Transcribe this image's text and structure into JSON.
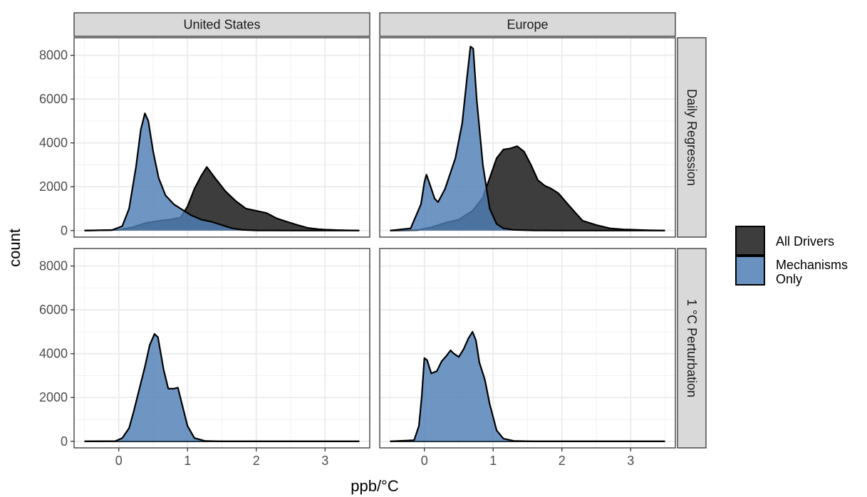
{
  "chart_data": {
    "type": "area",
    "xlabel": "ppb/°C",
    "ylabel": "count",
    "xlim": [
      -0.65,
      3.65
    ],
    "ylim": [
      -300,
      8800
    ],
    "x_ticks": [
      0,
      1,
      2,
      3
    ],
    "x_tick_labels": [
      "0",
      "1",
      "2",
      "3"
    ],
    "y_ticks": [
      0,
      2000,
      4000,
      6000,
      8000
    ],
    "y_tick_labels": [
      "0",
      "2000",
      "4000",
      "6000",
      "8000"
    ],
    "columns": [
      "United States",
      "Europe"
    ],
    "rows": [
      "Daily Regression",
      "1 °C Perturbation"
    ],
    "grid": true,
    "legend_position": "right",
    "legend": [
      {
        "label": "All Drivers",
        "color": "#333333"
      },
      {
        "label": "Mechanisms\nOnly",
        "color": "#4f7fb5"
      }
    ],
    "panels": [
      {
        "column": "United States",
        "row": "Daily Regression",
        "series": [
          {
            "name": "All Drivers",
            "color": "#333333",
            "x": [
              -0.5,
              0.0,
              0.2,
              0.4,
              0.6,
              0.75,
              0.9,
              1.0,
              1.1,
              1.2,
              1.28,
              1.4,
              1.55,
              1.7,
              1.85,
              2.0,
              2.15,
              2.3,
              2.45,
              2.6,
              2.75,
              2.9,
              3.0,
              3.2,
              3.5
            ],
            "y": [
              0,
              30,
              150,
              350,
              450,
              500,
              600,
              1100,
              1900,
              2500,
              2900,
              2400,
              1800,
              1350,
              1000,
              900,
              800,
              550,
              400,
              250,
              120,
              60,
              40,
              20,
              0
            ]
          },
          {
            "name": "Mechanisms Only",
            "color": "#4f7fb5",
            "x": [
              -0.5,
              -0.1,
              0.05,
              0.15,
              0.25,
              0.32,
              0.38,
              0.43,
              0.5,
              0.58,
              0.68,
              0.8,
              0.95,
              1.05,
              1.2,
              1.35,
              1.5,
              1.65,
              1.8,
              2.0,
              2.5,
              3.5
            ],
            "y": [
              0,
              20,
              200,
              1000,
              2900,
              4600,
              5350,
              5000,
              3600,
              2400,
              1600,
              1200,
              900,
              700,
              500,
              400,
              250,
              100,
              30,
              5,
              0,
              0
            ]
          }
        ]
      },
      {
        "column": "Europe",
        "row": "Daily Regression",
        "series": [
          {
            "name": "All Drivers",
            "color": "#333333",
            "x": [
              -0.5,
              -0.1,
              0.1,
              0.3,
              0.5,
              0.7,
              0.85,
              0.95,
              1.05,
              1.15,
              1.25,
              1.35,
              1.45,
              1.55,
              1.65,
              1.75,
              1.85,
              1.95,
              2.1,
              2.2,
              2.3,
              2.5,
              2.7,
              2.9,
              3.1,
              3.3,
              3.5
            ],
            "y": [
              0,
              20,
              150,
              350,
              500,
              900,
              1500,
              2400,
              3300,
              3700,
              3750,
              3850,
              3600,
              3000,
              2300,
              2050,
              1900,
              1700,
              1150,
              800,
              450,
              250,
              100,
              50,
              30,
              10,
              0
            ]
          },
          {
            "name": "Mechanisms Only",
            "color": "#4f7fb5",
            "x": [
              -0.5,
              -0.2,
              -0.05,
              0.0,
              0.03,
              0.08,
              0.15,
              0.2,
              0.3,
              0.45,
              0.55,
              0.62,
              0.67,
              0.71,
              0.76,
              0.85,
              0.95,
              1.05,
              1.15,
              1.3,
              1.6,
              2.0,
              3.5
            ],
            "y": [
              0,
              100,
              1200,
              2200,
              2550,
              2100,
              1450,
              1300,
              1900,
              3300,
              4900,
              7000,
              8400,
              8300,
              6000,
              3000,
              1000,
              300,
              100,
              30,
              5,
              0,
              0
            ]
          }
        ]
      },
      {
        "column": "United States",
        "row": "1 °C Perturbation",
        "series": [
          {
            "name": "All Drivers",
            "color": "#333333",
            "x": [
              -0.5,
              3.5
            ],
            "y": [
              0,
              0
            ]
          },
          {
            "name": "Mechanisms Only",
            "color": "#4f7fb5",
            "x": [
              -0.5,
              -0.05,
              0.05,
              0.15,
              0.22,
              0.3,
              0.38,
              0.45,
              0.52,
              0.57,
              0.65,
              0.72,
              0.8,
              0.86,
              0.92,
              1.0,
              1.1,
              1.25,
              1.5,
              3.5
            ],
            "y": [
              0,
              10,
              150,
              600,
              1400,
              2400,
              3400,
              4400,
              4900,
              4750,
              3300,
              2400,
              2400,
              2450,
              1700,
              700,
              150,
              20,
              0,
              0
            ]
          }
        ]
      },
      {
        "column": "Europe",
        "row": "1 °C Perturbation",
        "series": [
          {
            "name": "All Drivers",
            "color": "#333333",
            "x": [
              -0.5,
              3.5
            ],
            "y": [
              0,
              0
            ]
          },
          {
            "name": "Mechanisms Only",
            "color": "#4f7fb5",
            "x": [
              -0.5,
              -0.15,
              -0.08,
              -0.04,
              0.0,
              0.04,
              0.1,
              0.18,
              0.25,
              0.32,
              0.38,
              0.43,
              0.5,
              0.57,
              0.64,
              0.7,
              0.75,
              0.8,
              0.88,
              0.95,
              1.05,
              1.15,
              1.3,
              1.6,
              3.5
            ],
            "y": [
              0,
              50,
              700,
              2000,
              3800,
              3700,
              3100,
              3200,
              3650,
              3900,
              4150,
              4000,
              3850,
              4200,
              4700,
              5000,
              4600,
              3600,
              2800,
              1700,
              500,
              120,
              20,
              0,
              0
            ]
          }
        ]
      }
    ]
  }
}
